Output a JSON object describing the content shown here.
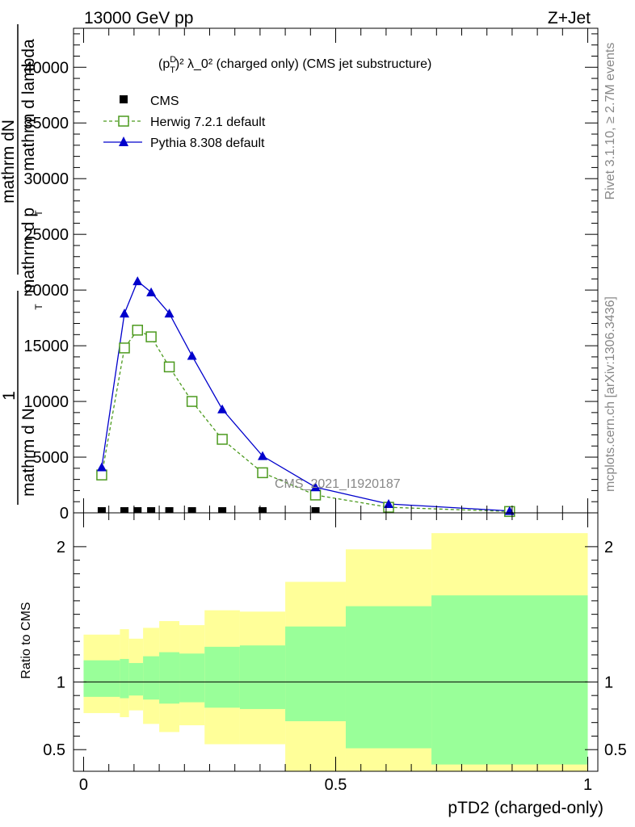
{
  "header": {
    "left": "13000 GeV pp",
    "right": "Z+Jet"
  },
  "side_labels": {
    "rivet": "Rivet 3.1.10, ≥ 2.7M events",
    "mcplots": "mcplots.cern.ch [arXiv:1306.3436]"
  },
  "watermark": "CMS_2021_I1920187",
  "chart_data": [
    {
      "type": "line",
      "panel": "main",
      "title_base": "(p",
      "title_sup": "D",
      "title_sub": "T",
      "title_rest": ")² λ_0² (charged only) (CMS jet substructure)",
      "ylabel_lines": [
        "1",
        "mathrm d N",
        "mathrm dN",
        "mathrm d p",
        "mathrm d lambda"
      ],
      "ylabel_sub": "T",
      "ylim": [
        0,
        43500
      ],
      "xlim": [
        -0.02,
        1.02
      ],
      "yticks": [
        {
          "v": 0,
          "label": "0"
        },
        {
          "v": 5000,
          "label": "5000"
        },
        {
          "v": 10000,
          "label": "10000"
        },
        {
          "v": 15000,
          "label": "15000"
        },
        {
          "v": 20000,
          "label": "20000"
        },
        {
          "v": 25000,
          "label": "25000"
        },
        {
          "v": 30000,
          "label": "30000"
        },
        {
          "v": 35000,
          "label": "35000"
        },
        {
          "v": 40000,
          "label": "40000"
        }
      ],
      "series": [
        {
          "name": "CMS",
          "style": "marker-square",
          "color": "#000000",
          "x": [
            0.036,
            0.081,
            0.107,
            0.134,
            0.17,
            0.215,
            0.275,
            0.355,
            0.46,
            0.605,
            0.845
          ],
          "y": [
            0,
            0,
            0,
            0,
            0,
            0,
            0,
            0,
            0,
            0,
            0
          ]
        },
        {
          "name": "Herwig 7.2.1 default",
          "style": "dashed-open-square",
          "color": "#4c9a1e",
          "x": [
            0.036,
            0.081,
            0.107,
            0.134,
            0.17,
            0.215,
            0.275,
            0.355,
            0.46,
            0.605,
            0.845
          ],
          "y": [
            3400,
            14800,
            16400,
            15800,
            13100,
            10000,
            6600,
            3600,
            1600,
            500,
            120
          ]
        },
        {
          "name": "Pythia 8.308 default",
          "style": "solid-triangle",
          "color": "#0000cc",
          "x": [
            0.036,
            0.081,
            0.107,
            0.134,
            0.17,
            0.215,
            0.275,
            0.355,
            0.46,
            0.605,
            0.845
          ],
          "y": [
            4100,
            17900,
            20800,
            19800,
            17900,
            14100,
            9300,
            5100,
            2300,
            800,
            170
          ]
        }
      ]
    },
    {
      "type": "area",
      "panel": "ratio",
      "ylabel": "Ratio to CMS",
      "xlabel": "pTD2 (charged-only)",
      "ylim": [
        0.34,
        2.25
      ],
      "xlim": [
        -0.02,
        1.02
      ],
      "xticks": [
        {
          "v": 0,
          "label": "0"
        },
        {
          "v": 0.5,
          "label": "0.5"
        },
        {
          "v": 1,
          "label": "1"
        }
      ],
      "yticks": [
        {
          "v": 0.5,
          "label": "0.5"
        },
        {
          "v": 1,
          "label": "1"
        },
        {
          "v": 2,
          "label": "2"
        }
      ],
      "bins": [
        {
          "x0": 0.0,
          "x1": 0.072,
          "in_lo": 0.89,
          "in_hi": 1.16,
          "out_lo": 0.77,
          "out_hi": 1.35
        },
        {
          "x0": 0.072,
          "x1": 0.09,
          "in_lo": 0.88,
          "in_hi": 1.17,
          "out_lo": 0.74,
          "out_hi": 1.39
        },
        {
          "x0": 0.09,
          "x1": 0.118,
          "in_lo": 0.9,
          "in_hi": 1.14,
          "out_lo": 0.79,
          "out_hi": 1.32
        },
        {
          "x0": 0.118,
          "x1": 0.15,
          "in_lo": 0.87,
          "in_hi": 1.19,
          "out_lo": 0.69,
          "out_hi": 1.4
        },
        {
          "x0": 0.15,
          "x1": 0.19,
          "in_lo": 0.84,
          "in_hi": 1.22,
          "out_lo": 0.63,
          "out_hi": 1.45
        },
        {
          "x0": 0.19,
          "x1": 0.24,
          "in_lo": 0.85,
          "in_hi": 1.21,
          "out_lo": 0.68,
          "out_hi": 1.42
        },
        {
          "x0": 0.24,
          "x1": 0.31,
          "in_lo": 0.81,
          "in_hi": 1.26,
          "out_lo": 0.54,
          "out_hi": 1.53
        },
        {
          "x0": 0.31,
          "x1": 0.4,
          "in_lo": 0.8,
          "in_hi": 1.27,
          "out_lo": 0.54,
          "out_hi": 1.52
        },
        {
          "x0": 0.4,
          "x1": 0.52,
          "in_lo": 0.71,
          "in_hi": 1.41,
          "out_lo": 0.34,
          "out_hi": 1.74
        },
        {
          "x0": 0.52,
          "x1": 0.69,
          "in_lo": 0.51,
          "in_hi": 1.56,
          "out_lo": 0.34,
          "out_hi": 1.98
        },
        {
          "x0": 0.69,
          "x1": 1.0,
          "in_lo": 0.39,
          "in_hi": 1.64,
          "out_lo": 0.34,
          "out_hi": 2.1
        }
      ],
      "inner_color": "#99ff99",
      "outer_color": "#ffff99"
    }
  ]
}
